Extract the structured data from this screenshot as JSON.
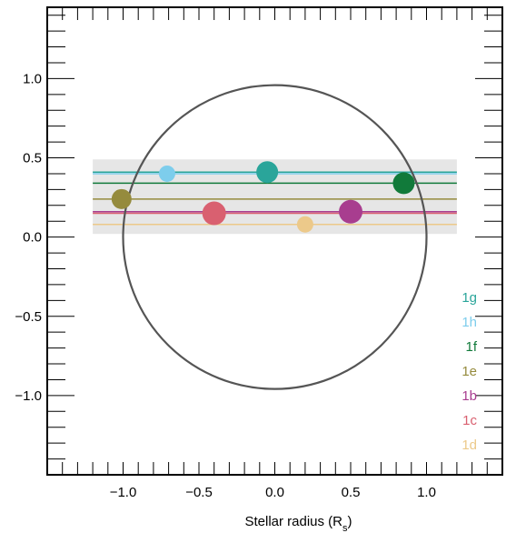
{
  "chart_data": {
    "type": "scatter",
    "title": "",
    "xlabel_main": "Stellar radius (R",
    "xlabel_sub": "s",
    "xlabel_close": ")",
    "ylabel": "",
    "xlim": [
      -1.5,
      1.5
    ],
    "ylim": [
      -1.5,
      1.45
    ],
    "x_ticks": [
      -1.0,
      -0.5,
      0.0,
      0.5,
      1.0
    ],
    "x_tick_labels": [
      "−1.0",
      "−0.5",
      "0.0",
      "0.5",
      "1.0"
    ],
    "y_ticks": [
      1.0,
      0.5,
      0.0,
      -0.5,
      -1.0
    ],
    "y_tick_labels": [
      "1.0",
      "0.5",
      "0.0",
      "−0.5",
      "−1.0"
    ],
    "minor_tick_step": 0.1,
    "grid": false,
    "legend_position": "bottom-right",
    "stellar_disk": {
      "center": [
        0,
        0
      ],
      "radius": 1.0,
      "color": "#555555"
    },
    "shaded_band": {
      "x": [
        -1.2,
        1.2
      ],
      "y": [
        0.02,
        0.49
      ],
      "color": "#e6e6e6"
    },
    "line_x_range": [
      -1.2,
      1.2
    ],
    "series": [
      {
        "name": "1g",
        "x": -0.05,
        "y": 0.41,
        "size": 12,
        "color": "#2aa59a"
      },
      {
        "name": "1h",
        "x": -0.71,
        "y": 0.4,
        "size": 9,
        "color": "#7dcdec"
      },
      {
        "name": "1f",
        "x": 0.85,
        "y": 0.34,
        "size": 12,
        "color": "#117a3a"
      },
      {
        "name": "1e",
        "x": -1.01,
        "y": 0.24,
        "size": 11,
        "color": "#958b3d"
      },
      {
        "name": "1b",
        "x": 0.5,
        "y": 0.16,
        "size": 13,
        "color": "#a83d8f"
      },
      {
        "name": "1c",
        "x": -0.4,
        "y": 0.15,
        "size": 13,
        "color": "#d96070"
      },
      {
        "name": "1d",
        "x": 0.2,
        "y": 0.08,
        "size": 9,
        "color": "#ecc98a"
      }
    ]
  }
}
